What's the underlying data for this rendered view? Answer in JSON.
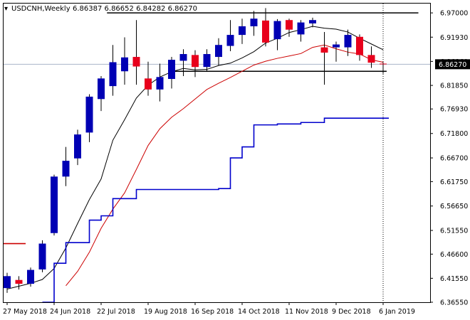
{
  "header": {
    "symbol_label": "USDCNH,Weekly",
    "ohlc_label": "6.86387 6.86652 6.84282 6.86270"
  },
  "colors": {
    "background": "#ffffff",
    "frame": "#000000",
    "bull_candle": "#0000b4",
    "bear_candle": "#e8001c",
    "wick": "#000000",
    "ma_fast": "#000000",
    "ma_slow": "#cc0000",
    "ma_long": "#0000cc",
    "horizontal_lines": "#000000",
    "current_price_line": "#a9b4c8",
    "price_tag_bg": "#000000",
    "price_tag_text": "#ffffff",
    "period_separator": "#000000"
  },
  "chart_data": {
    "type": "candlestick",
    "title": "USDCNH,Weekly",
    "ylim": [
      6.3655,
      6.9895
    ],
    "y_ticks": [
      "6.97000",
      "6.91930",
      "6.86860",
      "6.81850",
      "6.76930",
      "6.71800",
      "6.66700",
      "6.61750",
      "6.56650",
      "6.51550",
      "6.46600",
      "6.41550",
      "6.36550"
    ],
    "y_tick_values": [
      6.97,
      6.9193,
      6.8686,
      6.8185,
      6.7693,
      6.718,
      6.667,
      6.6175,
      6.5665,
      6.5155,
      6.466,
      6.4155,
      6.3655
    ],
    "x_ticks": [
      {
        "label": "27 May 2018",
        "index": 0
      },
      {
        "label": "24 Jun 2018",
        "index": 4
      },
      {
        "label": "22 Jul 2018",
        "index": 8
      },
      {
        "label": "19 Aug 2018",
        "index": 12
      },
      {
        "label": "16 Sep 2018",
        "index": 16
      },
      {
        "label": "14 Oct 2018",
        "index": 20
      },
      {
        "label": "11 Nov 2018",
        "index": 24
      },
      {
        "label": "9 Dec 2018",
        "index": 28
      },
      {
        "label": "6 Jan 2019",
        "index": 32
      }
    ],
    "candles": [
      {
        "o": 6.395,
        "h": 6.427,
        "l": 6.385,
        "c": 6.42
      },
      {
        "o": 6.412,
        "h": 6.42,
        "l": 6.392,
        "c": 6.404
      },
      {
        "o": 6.404,
        "h": 6.438,
        "l": 6.398,
        "c": 6.433
      },
      {
        "o": 6.434,
        "h": 6.495,
        "l": 6.428,
        "c": 6.488
      },
      {
        "o": 6.51,
        "h": 6.632,
        "l": 6.505,
        "c": 6.628
      },
      {
        "o": 6.628,
        "h": 6.69,
        "l": 6.608,
        "c": 6.661
      },
      {
        "o": 6.666,
        "h": 6.726,
        "l": 6.652,
        "c": 6.716
      },
      {
        "o": 6.72,
        "h": 6.8,
        "l": 6.7,
        "c": 6.795
      },
      {
        "o": 6.79,
        "h": 6.838,
        "l": 6.765,
        "c": 6.833
      },
      {
        "o": 6.817,
        "h": 6.903,
        "l": 6.797,
        "c": 6.867
      },
      {
        "o": 6.848,
        "h": 6.919,
        "l": 6.82,
        "c": 6.877
      },
      {
        "o": 6.878,
        "h": 6.955,
        "l": 6.82,
        "c": 6.858
      },
      {
        "o": 6.833,
        "h": 6.868,
        "l": 6.797,
        "c": 6.81
      },
      {
        "o": 6.81,
        "h": 6.864,
        "l": 6.785,
        "c": 6.836
      },
      {
        "o": 6.832,
        "h": 6.878,
        "l": 6.812,
        "c": 6.872
      },
      {
        "o": 6.87,
        "h": 6.894,
        "l": 6.838,
        "c": 6.884
      },
      {
        "o": 6.882,
        "h": 6.892,
        "l": 6.836,
        "c": 6.857
      },
      {
        "o": 6.857,
        "h": 6.894,
        "l": 6.849,
        "c": 6.884
      },
      {
        "o": 6.878,
        "h": 6.917,
        "l": 6.86,
        "c": 6.903
      },
      {
        "o": 6.901,
        "h": 6.955,
        "l": 6.89,
        "c": 6.924
      },
      {
        "o": 6.924,
        "h": 6.958,
        "l": 6.905,
        "c": 6.942
      },
      {
        "o": 6.942,
        "h": 6.974,
        "l": 6.922,
        "c": 6.958
      },
      {
        "o": 6.954,
        "h": 6.98,
        "l": 6.9,
        "c": 6.908
      },
      {
        "o": 6.915,
        "h": 6.957,
        "l": 6.892,
        "c": 6.953
      },
      {
        "o": 6.955,
        "h": 6.958,
        "l": 6.92,
        "c": 6.935
      },
      {
        "o": 6.925,
        "h": 6.955,
        "l": 6.91,
        "c": 6.95
      },
      {
        "o": 6.948,
        "h": 6.96,
        "l": 6.94,
        "c": 6.955
      },
      {
        "o": 6.898,
        "h": 6.93,
        "l": 6.82,
        "c": 6.887
      },
      {
        "o": 6.898,
        "h": 6.91,
        "l": 6.868,
        "c": 6.904
      },
      {
        "o": 6.898,
        "h": 6.935,
        "l": 6.88,
        "c": 6.924
      },
      {
        "o": 6.92,
        "h": 6.925,
        "l": 6.87,
        "c": 6.882
      },
      {
        "o": 6.882,
        "h": 6.9,
        "l": 6.855,
        "c": 6.866
      },
      {
        "o": 6.864,
        "h": 6.867,
        "l": 6.843,
        "c": 6.863
      }
    ],
    "series": [
      {
        "role": "ma_fast",
        "values": [
          6.393,
          6.399,
          6.405,
          6.413,
          6.436,
          6.479,
          6.53,
          6.58,
          6.623,
          6.704,
          6.747,
          6.792,
          6.819,
          6.836,
          6.847,
          6.854,
          6.851,
          6.852,
          6.86,
          6.865,
          6.876,
          6.889,
          6.907,
          6.917,
          6.929,
          6.935,
          6.942,
          6.938,
          6.936,
          6.93,
          6.917,
          6.905,
          6.893
        ]
      },
      {
        "role": "ma_slow",
        "values": [
          null,
          null,
          null,
          null,
          null,
          6.4,
          6.43,
          6.47,
          6.52,
          6.56,
          6.594,
          6.643,
          6.693,
          6.728,
          6.752,
          6.77,
          6.79,
          6.81,
          6.823,
          6.835,
          6.848,
          6.861,
          6.869,
          6.875,
          6.88,
          6.885,
          6.898,
          6.903,
          6.895,
          6.888,
          6.884,
          6.872,
          6.867
        ]
      },
      {
        "role": "ma_long",
        "step": true,
        "values": [
          null,
          null,
          null,
          6.363,
          6.447,
          6.49,
          6.49,
          6.537,
          6.546,
          6.582,
          6.582,
          6.601,
          6.601,
          6.601,
          6.601,
          6.601,
          6.601,
          6.601,
          6.603,
          6.667,
          6.69,
          6.736,
          6.736,
          6.738,
          6.738,
          6.741,
          6.741,
          6.75,
          6.75,
          6.75,
          6.75,
          6.75,
          6.75
        ]
      },
      {
        "role": "left_marker",
        "values": [
          6.488
        ]
      }
    ],
    "horizontal_lines": [
      {
        "value": 6.97,
        "from_index": 8.5,
        "to_index": 35
      },
      {
        "value": 6.848,
        "from_index": 14,
        "to_index": 32.3
      }
    ],
    "current_price": 6.8627,
    "current_price_label": "6.86270",
    "separator_index": 32
  }
}
